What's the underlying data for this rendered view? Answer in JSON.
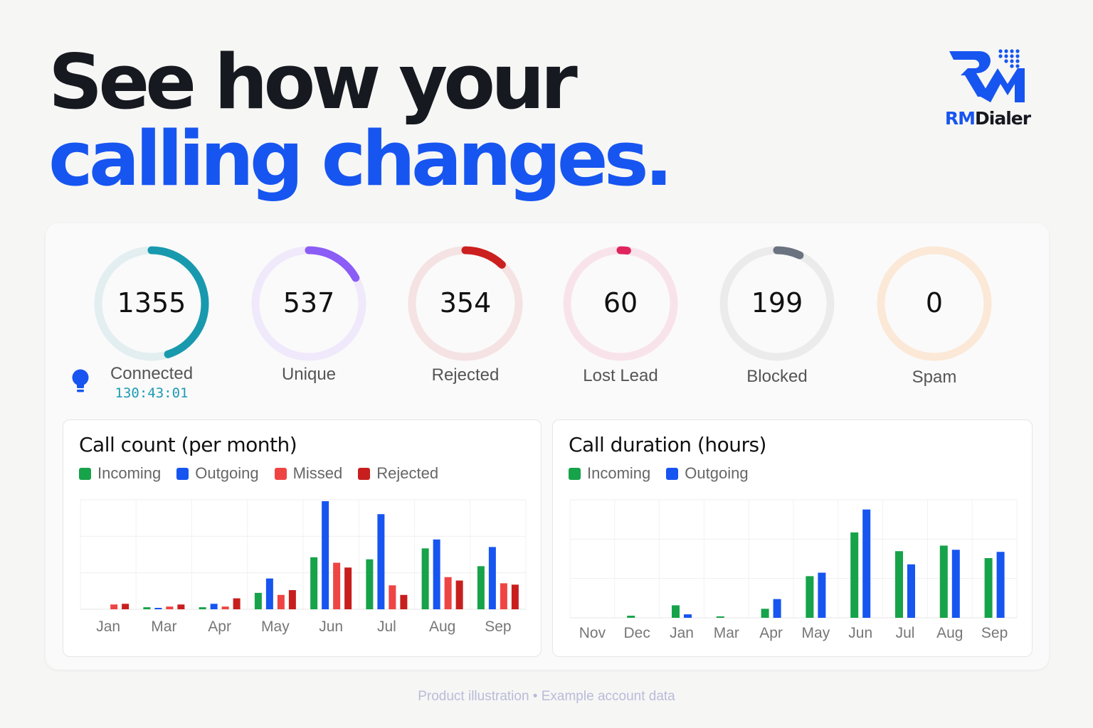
{
  "headline": {
    "line1": "See how your",
    "line2": "calling changes."
  },
  "logo": {
    "part1": "RM",
    "part2": "Dialer"
  },
  "colors": {
    "brand_blue": "#1755f0",
    "green": "#16a34a",
    "red_missed": "#ef4444",
    "red_rejected": "#c81e1e"
  },
  "stats": [
    {
      "value": "1355",
      "label": "Connected",
      "sub": "130:43:01",
      "fraction": 0.45,
      "color": "#1999ad",
      "track": "#e2eef0"
    },
    {
      "value": "537",
      "label": "Unique",
      "fraction": 0.17,
      "color": "#8b5cf6",
      "track": "#efe9fb"
    },
    {
      "value": "354",
      "label": "Rejected",
      "fraction": 0.12,
      "color": "#cc1f1f",
      "track": "#f5e2e2"
    },
    {
      "value": "60",
      "label": "Lost Lead",
      "fraction": 0.02,
      "color": "#e0245e",
      "track": "#f9e3ea"
    },
    {
      "value": "199",
      "label": "Blocked",
      "fraction": 0.07,
      "color": "#6b7280",
      "track": "#ebebeb"
    },
    {
      "value": "0",
      "label": "Spam",
      "fraction": 0,
      "color": "#f5a55a",
      "track": "#fbe8d6"
    }
  ],
  "icons": {
    "bulb": "lightbulb-icon"
  },
  "chart_data": [
    {
      "type": "bar",
      "title": "Call count (per month)",
      "categories": [
        "Jan",
        "Mar",
        "Apr",
        "May",
        "Jun",
        "Jul",
        "Aug",
        "Sep"
      ],
      "series": [
        {
          "name": "Incoming",
          "color": "#16a34a",
          "values": [
            0,
            3,
            3,
            24,
            76,
            73,
            89,
            63
          ]
        },
        {
          "name": "Outgoing",
          "color": "#1755f0",
          "values": [
            0,
            1,
            8,
            45,
            158,
            139,
            102,
            91
          ]
        },
        {
          "name": "Missed",
          "color": "#ef4444",
          "values": [
            7,
            4,
            4,
            21,
            68,
            35,
            47,
            38
          ]
        },
        {
          "name": "Rejected",
          "color": "#c81e1e",
          "values": [
            8,
            7,
            16,
            28,
            61,
            21,
            42,
            36
          ]
        }
      ],
      "ylim": [
        0,
        160
      ]
    },
    {
      "type": "bar",
      "title": "Call duration (hours)",
      "categories": [
        "Nov",
        "Dec",
        "Jan",
        "Mar",
        "Apr",
        "May",
        "Jun",
        "Jul",
        "Aug",
        "Sep"
      ],
      "series": [
        {
          "name": "Incoming",
          "color": "#16a34a",
          "values": [
            0,
            0.3,
            1.8,
            0.2,
            1.3,
            6.0,
            12.3,
            9.6,
            10.4,
            8.6
          ]
        },
        {
          "name": "Outgoing",
          "color": "#1755f0",
          "values": [
            0,
            0,
            0.5,
            0,
            2.7,
            6.5,
            15.6,
            7.7,
            9.8,
            9.5
          ]
        }
      ],
      "ylim": [
        0,
        17
      ]
    }
  ],
  "footer": "Product illustration • Example account data"
}
